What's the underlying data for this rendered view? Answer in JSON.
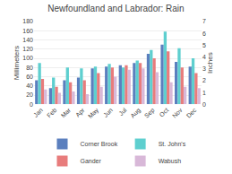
{
  "chart_data": {
    "type": "bar",
    "title": "Newfoundland and Labrador: Rain",
    "ylabel": "Millimeters",
    "y2label": "Inches",
    "categories": [
      "Jan",
      "Feb",
      "Mar",
      "Apr",
      "May",
      "Jun",
      "Jul",
      "Aug",
      "Sep",
      "Oct",
      "Nov",
      "Dec"
    ],
    "series": [
      {
        "name": "Corner Brook",
        "color": "#5b7fbe",
        "values": [
          52,
          35,
          52,
          58,
          78,
          82,
          85,
          90,
          110,
          130,
          92,
          82
        ]
      },
      {
        "name": "St. John's",
        "color": "#5ecfcf",
        "values": [
          90,
          58,
          80,
          78,
          82,
          88,
          80,
          95,
          118,
          158,
          122,
          100
        ]
      },
      {
        "name": "Gander",
        "color": "#e87c7c",
        "values": [
          55,
          38,
          48,
          52,
          68,
          80,
          85,
          90,
          100,
          115,
          80,
          68
        ]
      },
      {
        "name": "Wabush",
        "color": "#d8b8d8",
        "values": [
          32,
          25,
          28,
          22,
          38,
          60,
          75,
          78,
          70,
          48,
          38,
          35
        ]
      }
    ],
    "ylim": [
      0,
      180
    ],
    "yticks": [
      0,
      20,
      40,
      60,
      80,
      100,
      120,
      140,
      160,
      180
    ],
    "y2lim": [
      0,
      7
    ],
    "y2ticks": [
      0,
      1,
      2,
      3,
      4,
      5,
      6,
      7
    ],
    "grid": true,
    "legend": "bottom"
  }
}
